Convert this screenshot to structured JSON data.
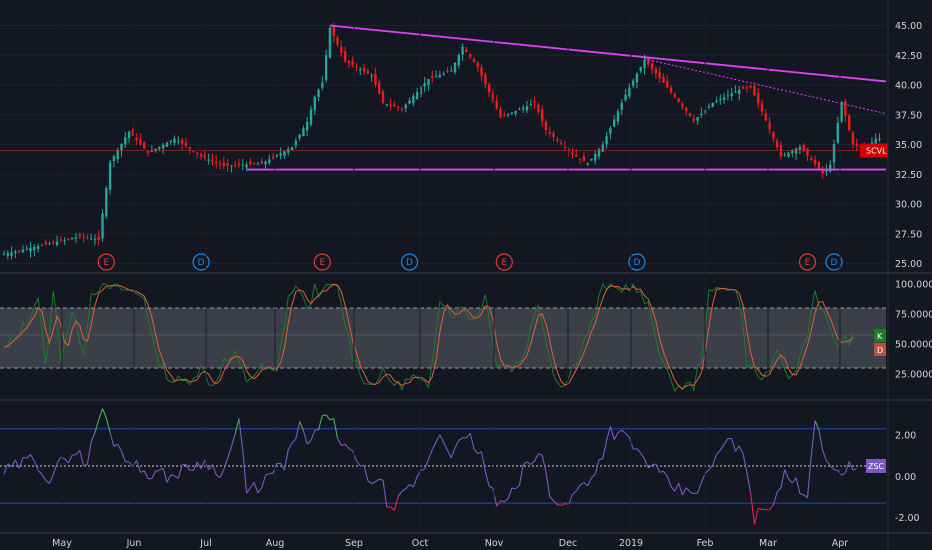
{
  "chart_data": [
    {
      "type": "candlestick",
      "ticker": "SCVL",
      "yticks": [
        "45.00",
        "42.50",
        "40.00",
        "37.50",
        "35.00",
        "32.50",
        "30.00",
        "27.50",
        "25.00"
      ],
      "ylim": [
        24.3,
        46.3
      ],
      "months": [
        "May",
        "Jun",
        "Jul",
        "Aug",
        "Sep",
        "Oct",
        "Nov",
        "Dec",
        "2019",
        "Feb",
        "Mar",
        "Apr"
      ],
      "anchors": [
        [
          0,
          25.8
        ],
        [
          20,
          27.3
        ],
        [
          25,
          27.0
        ],
        [
          26,
          29.2
        ],
        [
          28,
          33.5
        ],
        [
          33,
          36.1
        ],
        [
          38,
          34.3
        ],
        [
          45,
          35.5
        ],
        [
          52,
          34.0
        ],
        [
          58,
          33.2
        ],
        [
          68,
          33.4
        ],
        [
          76,
          34.8
        ],
        [
          80,
          36.9
        ],
        [
          82,
          39.0
        ],
        [
          84,
          40.2
        ],
        [
          86,
          44.8
        ],
        [
          90,
          42.0
        ],
        [
          97,
          40.8
        ],
        [
          100,
          38.5
        ],
        [
          105,
          38.0
        ],
        [
          112,
          40.5
        ],
        [
          118,
          41.2
        ],
        [
          121,
          43.2
        ],
        [
          125,
          41.5
        ],
        [
          131,
          37.3
        ],
        [
          140,
          38.5
        ],
        [
          143,
          36.2
        ],
        [
          150,
          34.2
        ],
        [
          154,
          33.4
        ],
        [
          158,
          35.0
        ],
        [
          164,
          39.2
        ],
        [
          169,
          42.1
        ],
        [
          174,
          40.2
        ],
        [
          182,
          37.0
        ],
        [
          187,
          38.5
        ],
        [
          194,
          39.6
        ],
        [
          197,
          39.8
        ],
        [
          200,
          37.8
        ],
        [
          205,
          34.0
        ],
        [
          210,
          34.8
        ],
        [
          216,
          32.6
        ],
        [
          218,
          33.3
        ],
        [
          221,
          38.6
        ],
        [
          224,
          35.0
        ],
        [
          227,
          34.6
        ],
        [
          230,
          35.5
        ]
      ],
      "last_price": 34.5,
      "events": [
        {
          "label": "E",
          "type": "earnings",
          "index": 27
        },
        {
          "label": "D",
          "type": "dividend",
          "index": 52
        },
        {
          "label": "E",
          "type": "earnings",
          "index": 84
        },
        {
          "label": "D",
          "type": "dividend",
          "index": 107
        },
        {
          "label": "E",
          "type": "earnings",
          "index": 132
        },
        {
          "label": "D",
          "type": "dividend",
          "index": 167
        },
        {
          "label": "E",
          "type": "earnings",
          "index": 212
        },
        {
          "label": "D",
          "type": "dividend",
          "index": 219
        }
      ],
      "trendlines": [
        {
          "from": [
            86,
            45.0
          ],
          "to": [
            230,
            40.3
          ],
          "style": "solid"
        },
        {
          "from": [
            169,
            42.2
          ],
          "to": [
            230,
            37.6
          ],
          "style": "dotted"
        },
        {
          "from": [
            64,
            32.9
          ],
          "to": [
            230,
            32.9
          ],
          "style": "solid"
        }
      ],
      "colors": {
        "up": "#26a69a",
        "down": "#ef1c1c",
        "trend": "#e040fb",
        "bg": "#131722"
      }
    },
    {
      "type": "line",
      "indicator": "stochastic",
      "series": [
        {
          "name": "K",
          "color": "#1b7c2a"
        },
        {
          "name": "D",
          "color": "#e65c3a"
        }
      ],
      "yticks": [
        "100.0000",
        "75.0000",
        "50.0000",
        "25.0000"
      ],
      "ylim": [
        5,
        105
      ],
      "bands": [
        30,
        80
      ],
      "anchors": [
        [
          0,
          45
        ],
        [
          6,
          68
        ],
        [
          9,
          90
        ],
        [
          11,
          30
        ],
        [
          13,
          92
        ],
        [
          15,
          40
        ],
        [
          18,
          75
        ],
        [
          21,
          45
        ],
        [
          23,
          92
        ],
        [
          25,
          98
        ],
        [
          31,
          96
        ],
        [
          37,
          90
        ],
        [
          40,
          40
        ],
        [
          44,
          20
        ],
        [
          48,
          18
        ],
        [
          52,
          30
        ],
        [
          55,
          15
        ],
        [
          58,
          35
        ],
        [
          61,
          40
        ],
        [
          64,
          20
        ],
        [
          68,
          30
        ],
        [
          72,
          25
        ],
        [
          75,
          90
        ],
        [
          78,
          98
        ],
        [
          80,
          75
        ],
        [
          82,
          98
        ],
        [
          84,
          90
        ],
        [
          86,
          100
        ],
        [
          88,
          95
        ],
        [
          92,
          40
        ],
        [
          96,
          15
        ],
        [
          100,
          25
        ],
        [
          104,
          15
        ],
        [
          108,
          22
        ],
        [
          112,
          12
        ],
        [
          115,
          90
        ],
        [
          118,
          75
        ],
        [
          121,
          80
        ],
        [
          124,
          70
        ],
        [
          127,
          90
        ],
        [
          130,
          35
        ],
        [
          134,
          30
        ],
        [
          137,
          40
        ],
        [
          141,
          85
        ],
        [
          145,
          25
        ],
        [
          148,
          15
        ],
        [
          152,
          45
        ],
        [
          156,
          75
        ],
        [
          158,
          100
        ],
        [
          162,
          95
        ],
        [
          166,
          100
        ],
        [
          170,
          80
        ],
        [
          173,
          45
        ],
        [
          176,
          15
        ],
        [
          182,
          15
        ],
        [
          184,
          40
        ],
        [
          186,
          90
        ],
        [
          190,
          100
        ],
        [
          194,
          90
        ],
        [
          196,
          35
        ],
        [
          200,
          20
        ],
        [
          204,
          40
        ],
        [
          208,
          20
        ],
        [
          212,
          60
        ],
        [
          214,
          95
        ],
        [
          218,
          60
        ],
        [
          220,
          50
        ],
        [
          224,
          55
        ]
      ]
    },
    {
      "type": "line",
      "indicator": "zscore",
      "series": [
        {
          "name": "ZSC",
          "color": "#7e57c2"
        }
      ],
      "yticks": [
        "2.00",
        "0.00",
        "-2.00"
      ],
      "ylim": [
        -2.6,
        3.5
      ],
      "levels": [
        2.3,
        0.5,
        -1.3
      ],
      "anchors": [
        [
          0,
          0.2
        ],
        [
          8,
          0.9
        ],
        [
          12,
          -0.2
        ],
        [
          16,
          0.9
        ],
        [
          19,
          1.2
        ],
        [
          22,
          0.6
        ],
        [
          24,
          2.2
        ],
        [
          26,
          3.3
        ],
        [
          28,
          2.0
        ],
        [
          32,
          1.0
        ],
        [
          36,
          0.3
        ],
        [
          44,
          0.0
        ],
        [
          52,
          0.7
        ],
        [
          58,
          0.2
        ],
        [
          62,
          2.7
        ],
        [
          64,
          -0.8
        ],
        [
          67,
          -0.5
        ],
        [
          70,
          0.0
        ],
        [
          74,
          0.6
        ],
        [
          78,
          2.4
        ],
        [
          80,
          1.5
        ],
        [
          84,
          2.6
        ],
        [
          86,
          3.0
        ],
        [
          88,
          2.0
        ],
        [
          92,
          0.9
        ],
        [
          96,
          0.0
        ],
        [
          100,
          -0.5
        ],
        [
          102,
          -1.8
        ],
        [
          106,
          -0.8
        ],
        [
          110,
          0.1
        ],
        [
          115,
          2.1
        ],
        [
          118,
          1.2
        ],
        [
          120,
          1.5
        ],
        [
          123,
          1.8
        ],
        [
          126,
          1.0
        ],
        [
          128,
          -0.5
        ],
        [
          131,
          -1.5
        ],
        [
          134,
          -0.9
        ],
        [
          138,
          0.6
        ],
        [
          142,
          1.0
        ],
        [
          144,
          -0.8
        ],
        [
          148,
          -1.5
        ],
        [
          152,
          -0.5
        ],
        [
          156,
          0.2
        ],
        [
          160,
          2.2
        ],
        [
          164,
          1.9
        ],
        [
          168,
          1.0
        ],
        [
          172,
          0.3
        ],
        [
          176,
          -0.5
        ],
        [
          180,
          -0.8
        ],
        [
          184,
          -0.5
        ],
        [
          188,
          1.0
        ],
        [
          192,
          1.8
        ],
        [
          196,
          0.5
        ],
        [
          198,
          -2.0
        ],
        [
          202,
          -1.4
        ],
        [
          206,
          0.0
        ],
        [
          210,
          -0.5
        ],
        [
          212,
          -0.9
        ],
        [
          214,
          3.0
        ],
        [
          216,
          1.5
        ],
        [
          218,
          0.2
        ],
        [
          222,
          0.4
        ],
        [
          225,
          0.5
        ]
      ]
    }
  ]
}
